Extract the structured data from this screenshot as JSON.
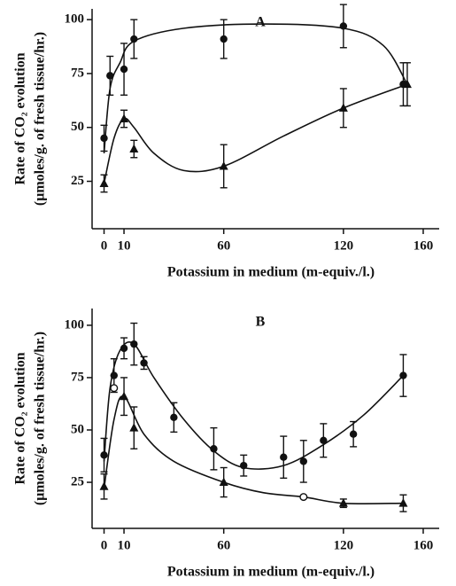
{
  "chart_data": [
    {
      "type": "scatter",
      "panel_label": "A",
      "ylabel": [
        "Rate of CO₂ evolution",
        "(μmoles/g. of fresh tissue/hr.)"
      ],
      "xlabel": "Potassium in medium (m-equiv./l.)",
      "xlim": [
        -6,
        168
      ],
      "ylim": [
        3,
        105
      ],
      "xticks": [
        0,
        10,
        60,
        120,
        160
      ],
      "yticks": [
        25,
        50,
        75,
        100
      ],
      "series": [
        {
          "marker": "circle",
          "color": "#111111",
          "x": [
            0,
            3,
            10,
            15,
            60,
            120,
            150
          ],
          "values": [
            45,
            74,
            77,
            91,
            91,
            97,
            70
          ],
          "errors": [
            6,
            9,
            12,
            9,
            9,
            10,
            10
          ]
        },
        {
          "marker": "triangle",
          "color": "#111111",
          "x": [
            0,
            10,
            15,
            60,
            120,
            152
          ],
          "values": [
            24,
            54,
            40,
            32,
            59,
            70
          ],
          "errors": [
            4,
            4,
            4,
            10,
            9,
            10
          ]
        }
      ],
      "curves": [
        {
          "x": [
            0,
            3,
            8,
            15,
            40,
            80,
            120,
            140,
            152
          ],
          "values": [
            38,
            68,
            80,
            90,
            96,
            98,
            96,
            88,
            70
          ]
        },
        {
          "x": [
            0,
            5,
            10,
            15,
            25,
            40,
            60,
            90,
            120,
            152
          ],
          "values": [
            24,
            45,
            54,
            50,
            38,
            30,
            32,
            46,
            59,
            70
          ]
        }
      ]
    },
    {
      "type": "scatter",
      "panel_label": "B",
      "ylabel": [
        "Rate of CO₂ evolution",
        "(μmoles/g. of fresh tissue/hr.)"
      ],
      "xlabel": "Potassium in medium (m-equiv./l.)",
      "xlim": [
        -6,
        168
      ],
      "ylim": [
        3,
        108
      ],
      "xticks": [
        0,
        10,
        60,
        120,
        160
      ],
      "yticks": [
        25,
        50,
        75,
        100
      ],
      "series": [
        {
          "marker": "circle",
          "color": "#111111",
          "x": [
            0,
            5,
            10,
            15,
            20,
            35,
            55,
            70,
            90,
            100,
            110,
            125,
            150
          ],
          "values": [
            38,
            76,
            89,
            91,
            82,
            56,
            41,
            33,
            37,
            35,
            45,
            48,
            76
          ],
          "errors": [
            8,
            8,
            5,
            10,
            3,
            7,
            10,
            5,
            10,
            10,
            8,
            6,
            10
          ]
        },
        {
          "marker": "open-circle",
          "color": "#111111",
          "x": [
            5,
            100
          ],
          "values": [
            70,
            18
          ]
        },
        {
          "marker": "triangle",
          "color": "#111111",
          "x": [
            0,
            10,
            15,
            60,
            120,
            150
          ],
          "values": [
            23,
            66,
            51,
            25,
            15,
            15
          ],
          "errors": [
            6,
            9,
            10,
            7,
            2,
            4
          ]
        }
      ],
      "curves": [
        {
          "x": [
            0,
            3,
            8,
            15,
            25,
            40,
            55,
            70,
            90,
            110,
            130,
            150
          ],
          "values": [
            35,
            70,
            88,
            91,
            75,
            55,
            40,
            32,
            33,
            43,
            57,
            76
          ]
        },
        {
          "x": [
            0,
            5,
            10,
            20,
            35,
            60,
            80,
            100,
            120,
            150
          ],
          "values": [
            22,
            55,
            66,
            48,
            35,
            25,
            20,
            18,
            15,
            15
          ]
        }
      ]
    }
  ]
}
